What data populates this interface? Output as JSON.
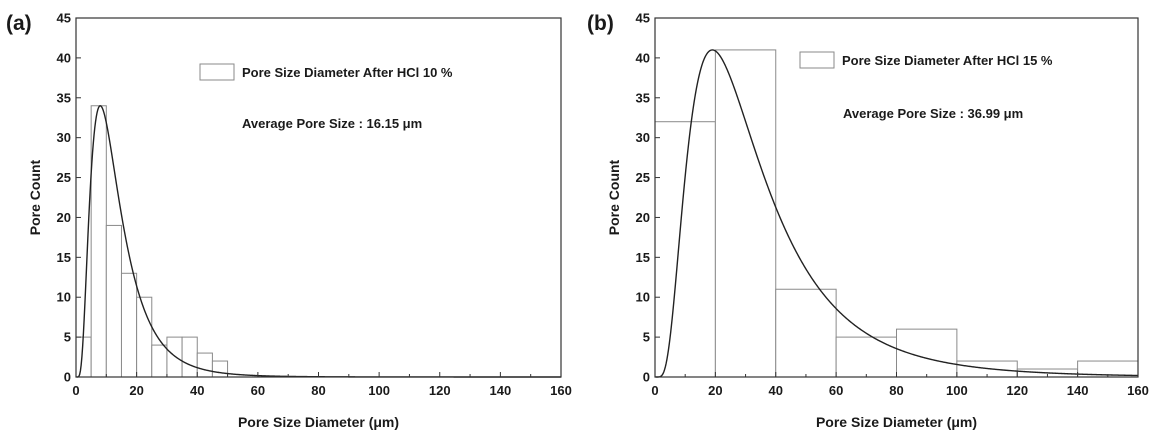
{
  "chart_data": [
    {
      "type": "bar",
      "panel_label": "(a)",
      "xlabel": "Pore Size Diameter (μm)",
      "ylabel": "Pore Count",
      "xlim": [
        0,
        160
      ],
      "ylim": [
        0,
        45
      ],
      "x_ticks": [
        0,
        20,
        40,
        60,
        80,
        100,
        120,
        140,
        160
      ],
      "y_ticks": [
        0,
        5,
        10,
        15,
        20,
        25,
        30,
        35,
        40,
        45
      ],
      "bin_width": 5,
      "bins": [
        {
          "x0": 0,
          "x1": 5,
          "value": 5
        },
        {
          "x0": 5,
          "x1": 10,
          "value": 34
        },
        {
          "x0": 10,
          "x1": 15,
          "value": 19
        },
        {
          "x0": 15,
          "x1": 20,
          "value": 13
        },
        {
          "x0": 20,
          "x1": 25,
          "value": 10
        },
        {
          "x0": 25,
          "x1": 30,
          "value": 4
        },
        {
          "x0": 30,
          "x1": 35,
          "value": 5
        },
        {
          "x0": 35,
          "x1": 40,
          "value": 5
        },
        {
          "x0": 40,
          "x1": 45,
          "value": 3
        },
        {
          "x0": 45,
          "x1": 50,
          "value": 2
        }
      ],
      "fit_curve": {
        "type": "lognormal",
        "peak_x": 8,
        "peak_y": 34
      },
      "legend": "Pore Size Diameter After HCl 10 %",
      "annotation": "Average Pore Size : 16.15 μm",
      "legend_position": "top-right",
      "grid": false
    },
    {
      "type": "bar",
      "panel_label": "(b)",
      "xlabel": "Pore Size Diameter (μm)",
      "ylabel": "Pore Count",
      "xlim": [
        0,
        160
      ],
      "ylim": [
        0,
        45
      ],
      "x_ticks": [
        0,
        20,
        40,
        60,
        80,
        100,
        120,
        140,
        160
      ],
      "y_ticks": [
        0,
        5,
        10,
        15,
        20,
        25,
        30,
        35,
        40,
        45
      ],
      "bin_width": 20,
      "bins": [
        {
          "x0": 0,
          "x1": 20,
          "value": 32
        },
        {
          "x0": 20,
          "x1": 40,
          "value": 41
        },
        {
          "x0": 40,
          "x1": 60,
          "value": 11
        },
        {
          "x0": 60,
          "x1": 80,
          "value": 5
        },
        {
          "x0": 80,
          "x1": 100,
          "value": 6
        },
        {
          "x0": 100,
          "x1": 120,
          "value": 2
        },
        {
          "x0": 120,
          "x1": 140,
          "value": 1
        },
        {
          "x0": 140,
          "x1": 160,
          "value": 2
        }
      ],
      "fit_curve": {
        "type": "lognormal",
        "peak_x": 19,
        "peak_y": 41
      },
      "legend": "Pore Size Diameter After HCl 15 %",
      "annotation": "Average Pore Size : 36.99 μm",
      "legend_position": "top-right",
      "grid": false
    }
  ]
}
